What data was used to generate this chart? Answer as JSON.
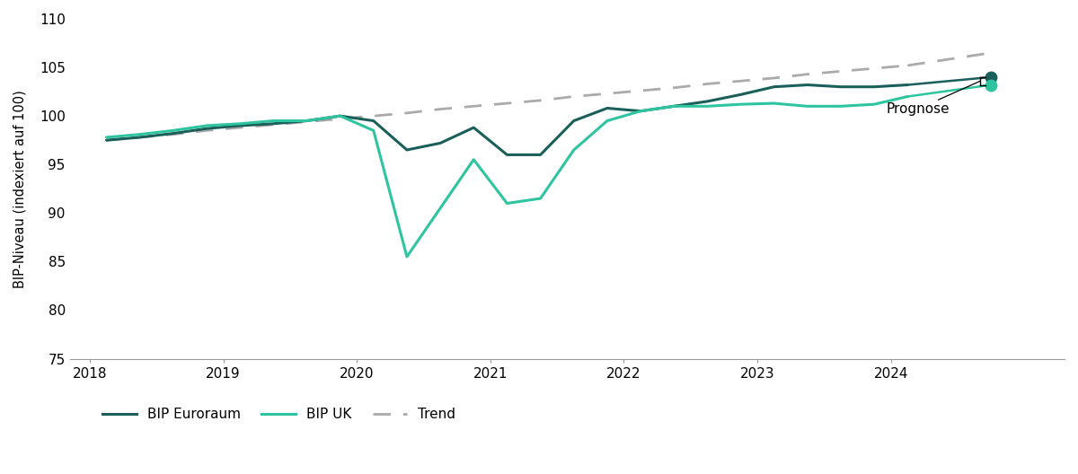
{
  "ylabel": "BIP-Niveau (indexiert auf 100)",
  "ylim": [
    75,
    110
  ],
  "yticks": [
    75,
    80,
    85,
    90,
    95,
    100,
    105,
    110
  ],
  "color_euroraum": "#1a5f5a",
  "color_uk": "#2ec4a0",
  "color_trend": "#aaaaaa",
  "prognose_label": "Prognose",
  "x_numeric": [
    2018.125,
    2018.375,
    2018.625,
    2018.875,
    2019.125,
    2019.375,
    2019.625,
    2019.875,
    2020.125,
    2020.375,
    2020.625,
    2020.875,
    2021.125,
    2021.375,
    2021.625,
    2021.875,
    2022.125,
    2022.375,
    2022.625,
    2022.875,
    2023.125,
    2023.375,
    2023.625,
    2023.875,
    2024.125
  ],
  "bip_euroraum": [
    97.5,
    97.8,
    98.2,
    98.7,
    99.0,
    99.2,
    99.5,
    100.0,
    99.5,
    96.5,
    97.2,
    98.8,
    96.0,
    96.0,
    99.5,
    100.8,
    100.5,
    101.0,
    101.5,
    102.2,
    103.0,
    103.2,
    103.0,
    103.0,
    103.2
  ],
  "bip_uk": [
    97.8,
    98.1,
    98.5,
    99.0,
    99.2,
    99.5,
    99.5,
    100.0,
    98.5,
    85.5,
    90.5,
    95.5,
    91.0,
    91.5,
    96.5,
    99.5,
    100.5,
    101.0,
    101.0,
    101.2,
    101.3,
    101.0,
    101.0,
    101.2,
    102.0
  ],
  "trend": [
    97.5,
    97.8,
    98.1,
    98.5,
    98.8,
    99.1,
    99.4,
    99.7,
    100.0,
    100.3,
    100.7,
    101.0,
    101.3,
    101.6,
    102.0,
    102.3,
    102.6,
    102.9,
    103.3,
    103.6,
    103.9,
    104.3,
    104.6,
    104.9,
    105.2
  ],
  "forecast_x": 2024.75,
  "forecast_euroraum": 104.0,
  "forecast_uk": 103.2,
  "forecast_trend": 106.5,
  "xtick_positions": [
    2018,
    2019,
    2020,
    2021,
    2022,
    2023,
    2024
  ],
  "xtick_labels": [
    "2018",
    "2019",
    "2020",
    "2021",
    "2022",
    "2023",
    "2024"
  ],
  "xlim_left": 2017.85,
  "xlim_right": 2025.3
}
